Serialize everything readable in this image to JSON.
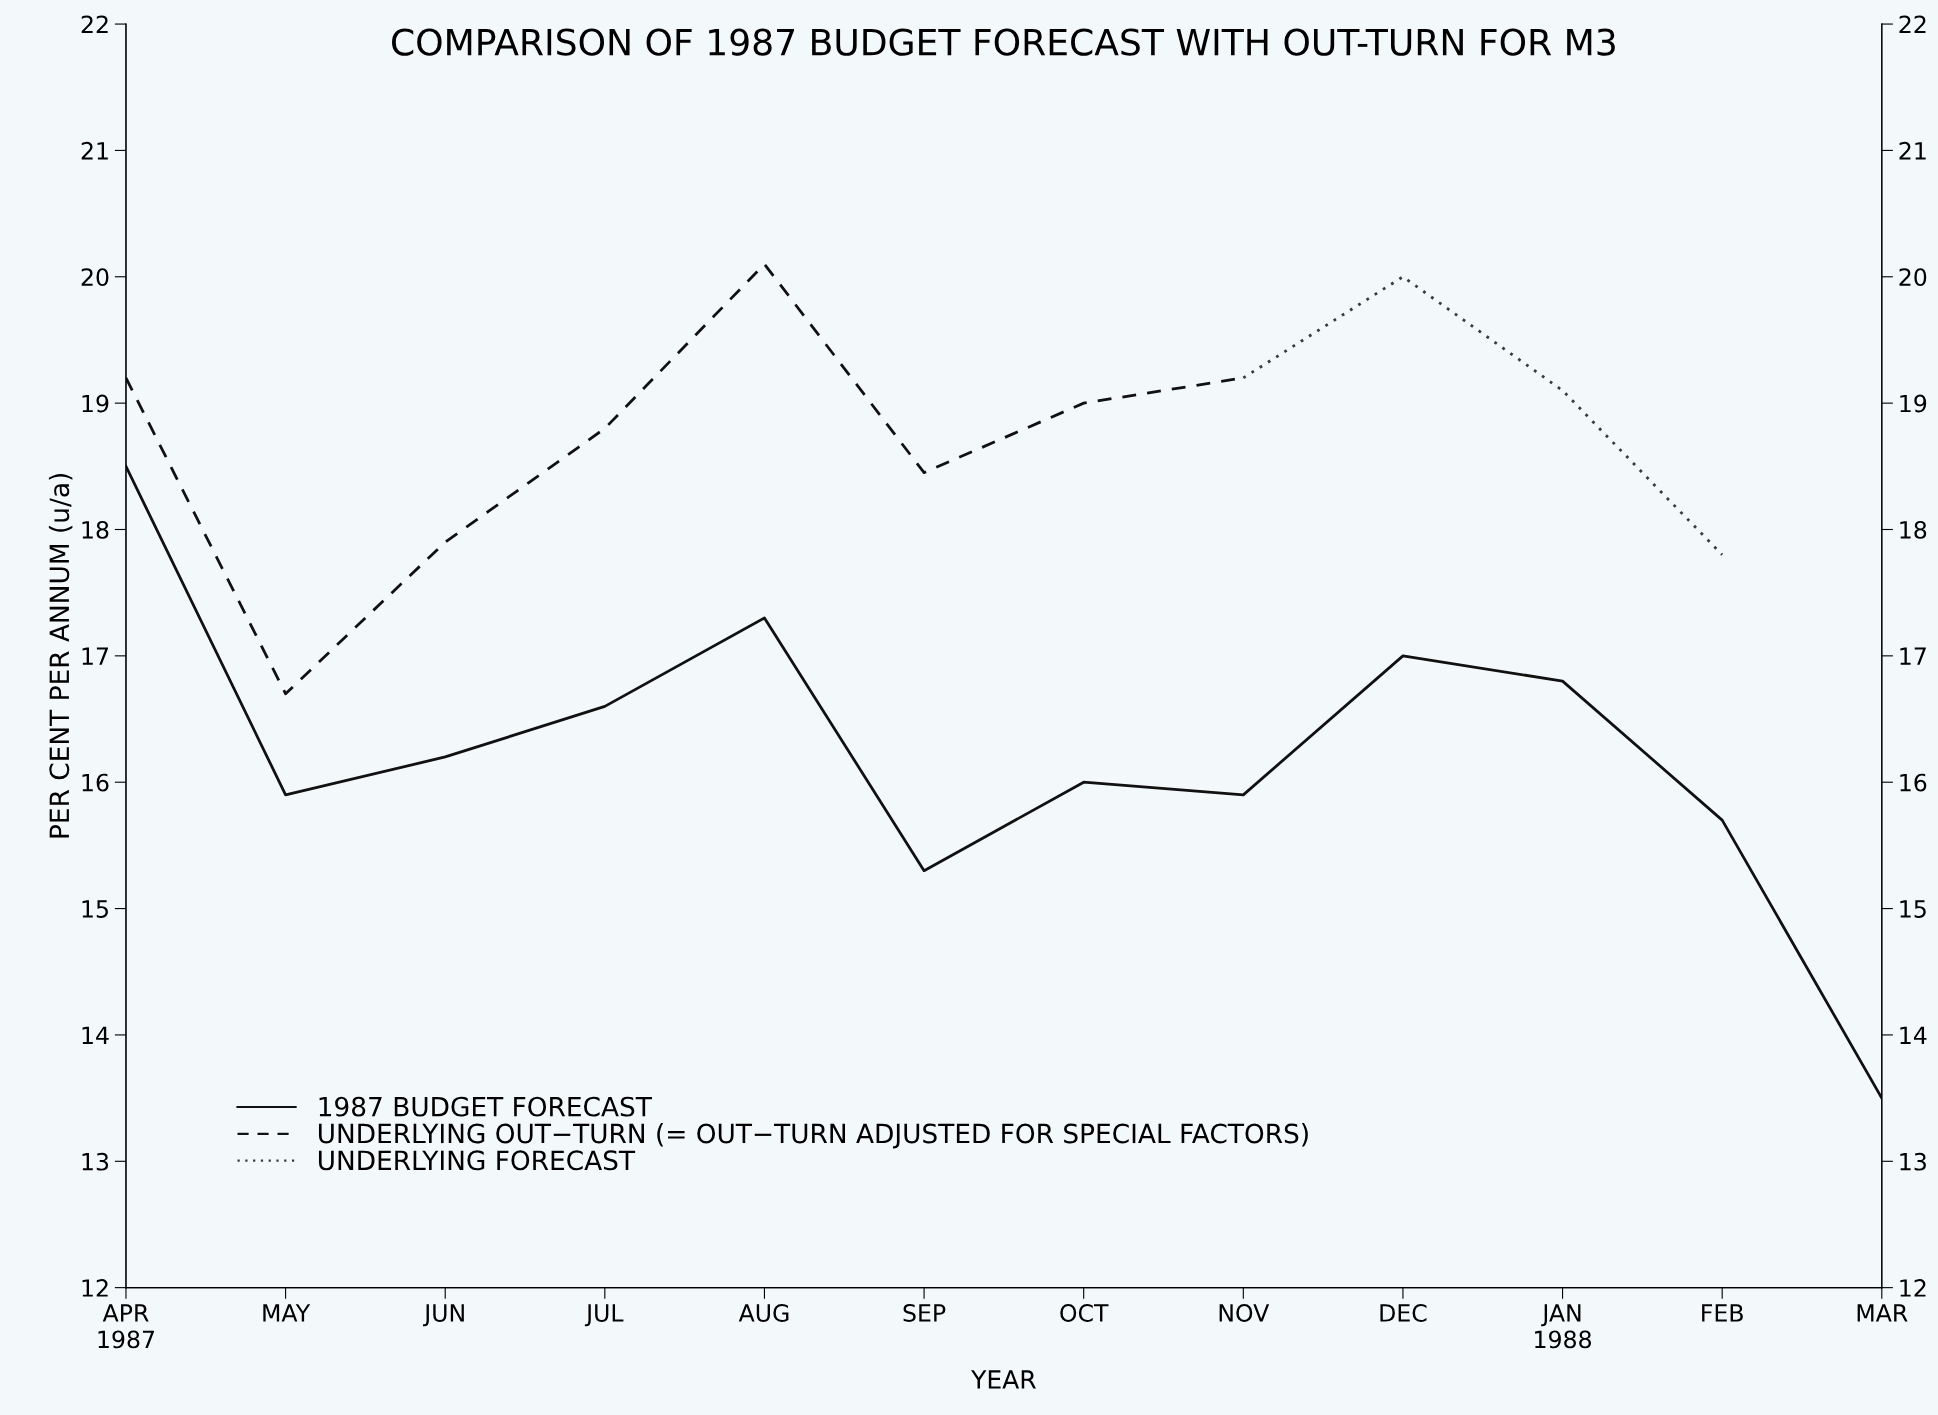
{
  "chart_data": {
    "type": "line",
    "title": "COMPARISON OF 1987 BUDGET FORECAST WITH OUT-TURN FOR M3",
    "xlabel": "YEAR",
    "ylabel": "PER CENT PER ANNUM (u/a)",
    "categories": [
      "APR\n1987",
      "MAY",
      "JUN",
      "JUL",
      "AUG",
      "SEP",
      "OCT",
      "NOV",
      "DEC",
      "JAN\n1988",
      "FEB",
      "MAR"
    ],
    "series": [
      {
        "name": "1987 BUDGET FORECAST",
        "color": "#111111",
        "line_style": "solid",
        "values": [
          18.5,
          15.9,
          16.2,
          16.6,
          17.3,
          15.3,
          16.0,
          15.9,
          17.0,
          16.8,
          15.7,
          13.5
        ]
      },
      {
        "name": "UNDERLYING OUT−TURN (= OUT−TURN ADJUSTED FOR SPECIAL FACTORS)",
        "color": "#111111",
        "line_style": "dashed",
        "values": [
          19.2,
          16.7,
          17.9,
          18.8,
          20.1,
          18.45,
          19.0,
          19.2,
          null,
          null,
          null,
          null
        ]
      },
      {
        "name": "UNDERLYING FORECAST",
        "color": "#3a3a3a",
        "line_style": "dotted",
        "values": [
          null,
          null,
          null,
          null,
          null,
          null,
          null,
          19.2,
          20.0,
          19.1,
          17.8,
          null
        ]
      }
    ],
    "ylim": [
      12,
      22
    ],
    "yticks": [
      12,
      13,
      14,
      15,
      16,
      17,
      18,
      19,
      20,
      21,
      22
    ],
    "y2lim": [
      12,
      22
    ],
    "y2ticks": [
      12,
      13,
      14,
      15,
      16,
      17,
      18,
      19,
      20,
      21,
      22
    ],
    "grid": false,
    "legend": "bottom left",
    "marker": "none"
  }
}
